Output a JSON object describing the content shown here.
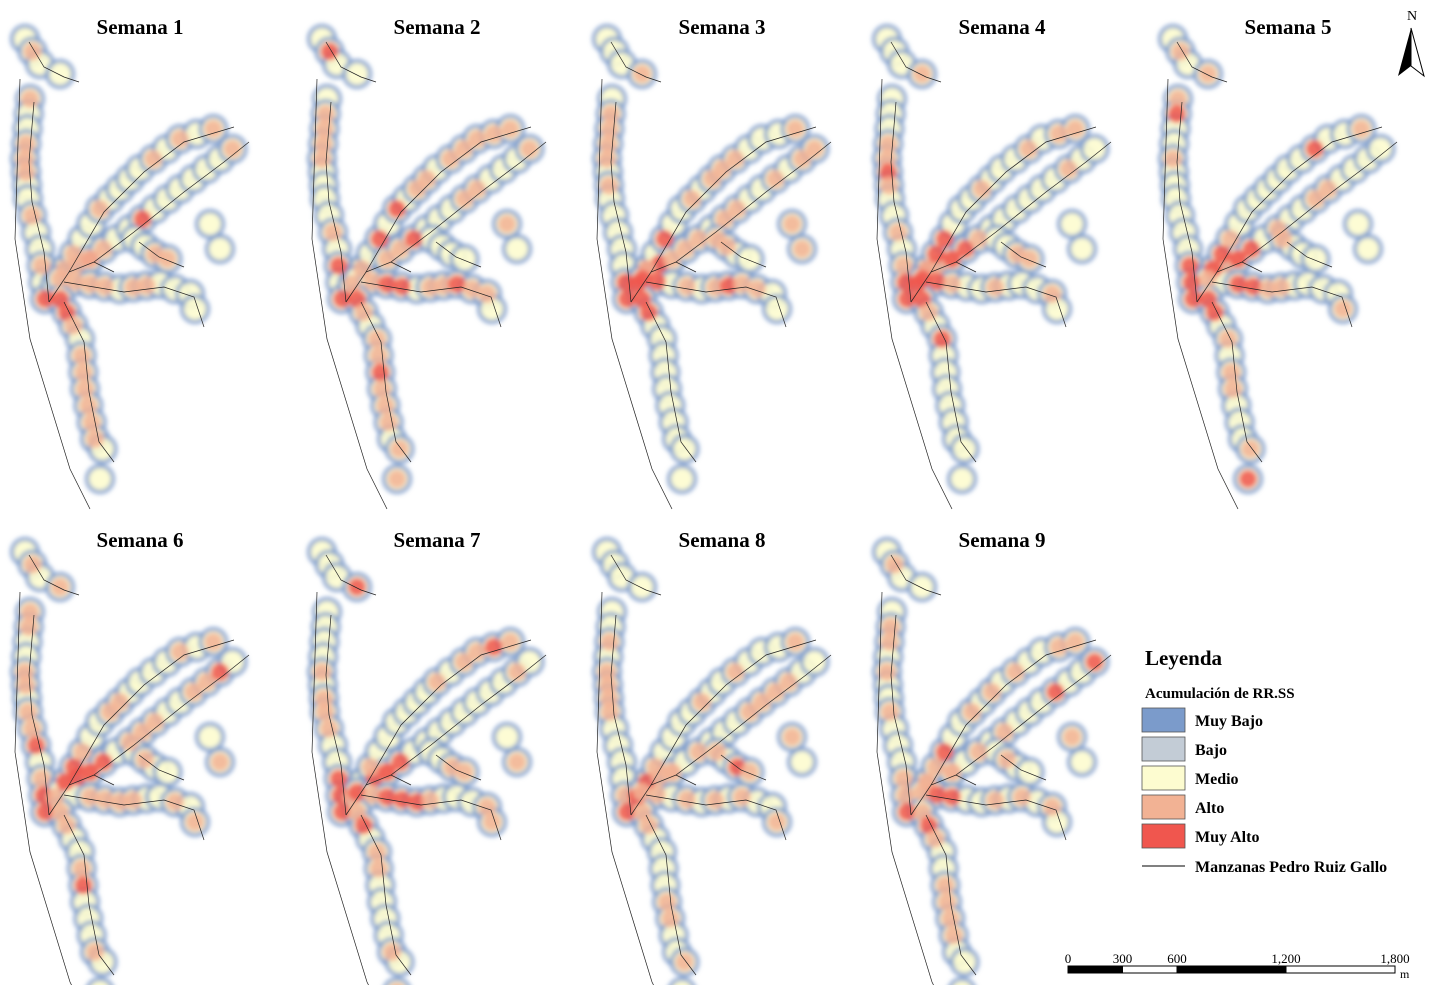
{
  "panels": [
    {
      "title": "Semana 1"
    },
    {
      "title": "Semana 2"
    },
    {
      "title": "Semana 3"
    },
    {
      "title": "Semana 4"
    },
    {
      "title": "Semana 5"
    },
    {
      "title": "Semana 6"
    },
    {
      "title": "Semana 7"
    },
    {
      "title": "Semana 8"
    },
    {
      "title": "Semana 9"
    }
  ],
  "north": "N",
  "legend": {
    "title": "Leyenda",
    "subtitle": "Acumulación de RR.SS",
    "items": [
      {
        "label": "Muy Bajo",
        "color": "#7b9bcb"
      },
      {
        "label": "Bajo",
        "color": "#c3ccd6"
      },
      {
        "label": "Medio",
        "color": "#fdfcd0"
      },
      {
        "label": "Alto",
        "color": "#f2b294"
      },
      {
        "label": "Muy Alto",
        "color": "#f0564e"
      }
    ],
    "line_label": "Manzanas Pedro Ruiz Gallo"
  },
  "scale": {
    "ticks": [
      0,
      300,
      600,
      {
        "value": 1200,
        "label": "1,200"
      },
      {
        "value": 1800,
        "label": "1,800"
      }
    ],
    "unit": "m"
  }
}
